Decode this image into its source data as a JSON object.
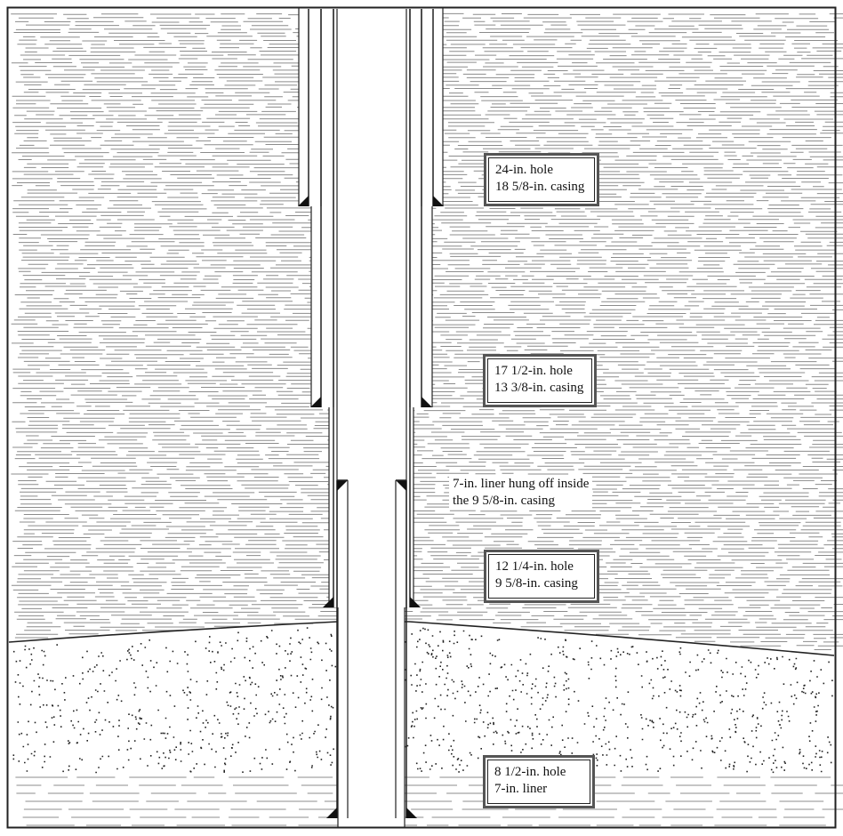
{
  "colors": {
    "background": "#ffffff",
    "line": "#222222",
    "shale_stroke": "#8c8c8c",
    "sand_dot": "#222222",
    "box_border": "#555555"
  },
  "labels": {
    "conductor": {
      "line1": "24-in. hole",
      "line2": "18 5/8-in. casing"
    },
    "surface": {
      "line1": "17 1/2-in. hole",
      "line2": "13 3/8-in. casing"
    },
    "liner_hanger": {
      "line1": "7-in. liner hung off inside",
      "line2": "the 9 5/8-in. casing"
    },
    "intermediate": {
      "line1": "12 1/4-in. hole",
      "line2": "9 5/8-in. casing"
    },
    "production": {
      "line1": "8 1/2-in. hole",
      "line2": "7-in. liner"
    }
  }
}
